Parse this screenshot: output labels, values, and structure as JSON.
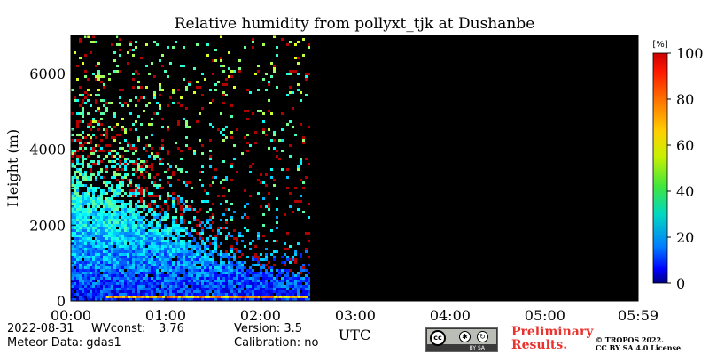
{
  "chart_data": {
    "type": "heatmap",
    "title": "Relative humidity from pollyxt_tjk at Dushanbe",
    "xlabel": "UTC",
    "ylabel": "Height (m)",
    "x_ticks": [
      "00:00",
      "01:00",
      "02:00",
      "03:00",
      "04:00",
      "05:00",
      "05:59"
    ],
    "x_range_hours": [
      0,
      5.983
    ],
    "y_ticks": [
      0,
      2000,
      4000,
      6000
    ],
    "ylim": [
      0,
      7000
    ],
    "data_end_hour": 2.5,
    "no_data_color": "#000000",
    "colorbar": {
      "unit_label": "[%]",
      "ticks": [
        0,
        20,
        40,
        60,
        80,
        100
      ],
      "range": [
        0,
        100
      ],
      "colormap": "jet"
    },
    "rh_profile_summary": [
      {
        "height_m": 100,
        "rh_percent": 15
      },
      {
        "height_m": 1000,
        "rh_percent": 25
      },
      {
        "height_m": 2000,
        "rh_percent": 35
      },
      {
        "height_m": 3000,
        "rh_percent": 40
      },
      {
        "height_m": 4000,
        "rh_percent": 45
      },
      {
        "height_m": 5500,
        "rh_percent": 50
      }
    ],
    "signal_top_height_m": [
      {
        "hour": 0.0,
        "height_m": 3600
      },
      {
        "hour": 0.5,
        "height_m": 3000
      },
      {
        "hour": 1.0,
        "height_m": 2200
      },
      {
        "hour": 1.5,
        "height_m": 1400
      },
      {
        "hour": 2.0,
        "height_m": 900
      },
      {
        "hour": 2.5,
        "height_m": 700
      }
    ]
  },
  "footer": {
    "date": "2022-08-31",
    "wvconst_label": "WVconst:",
    "wvconst_value": "3.76",
    "version": "Version: 3.5",
    "meteor": "Meteor Data: gdas1",
    "calibration": "Calibration: no",
    "preliminary_line1": "Preliminary",
    "preliminary_line2": "Results.",
    "copyright_line1": "© TROPOS 2022.",
    "copyright_line2": "CC BY SA 4.0 License.",
    "license_badge": "BY SA",
    "license_badge_cc": "cc"
  },
  "colors": {
    "preliminary": "#e8332f"
  }
}
